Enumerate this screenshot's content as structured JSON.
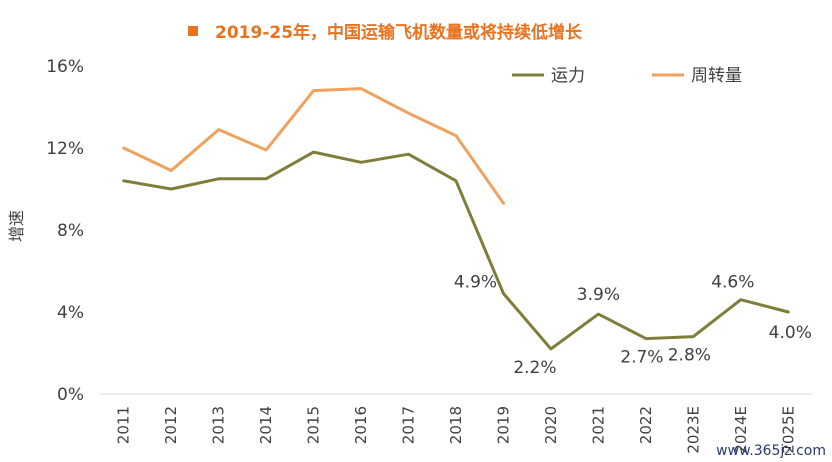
{
  "chart_data": {
    "type": "line",
    "title": "2019-25年，中国运输飞机数量或将持续低增长",
    "ylabel": "增速",
    "xlabel": "",
    "ylim": [
      0,
      16
    ],
    "yticks": [
      "0%",
      "4%",
      "8%",
      "12%",
      "16%"
    ],
    "yticks_values": [
      0,
      4,
      8,
      12,
      16
    ],
    "categories": [
      "2011",
      "2012",
      "2013",
      "2014",
      "2015",
      "2016",
      "2017",
      "2018",
      "2019",
      "2020",
      "2021",
      "2022",
      "2023E",
      "2024E",
      "2025E"
    ],
    "series": [
      {
        "name": "运力",
        "color": "#7E7E3A",
        "values": [
          10.4,
          10.0,
          10.5,
          10.5,
          11.8,
          11.3,
          11.7,
          10.4,
          4.9,
          2.2,
          3.9,
          2.7,
          2.8,
          4.6,
          4.0
        ],
        "data_labels": [
          null,
          null,
          null,
          null,
          null,
          null,
          null,
          null,
          "4.9%",
          "2.2%",
          "3.9%",
          "2.7%",
          "2.8%",
          "4.6%",
          "4.0%"
        ]
      },
      {
        "name": "周转量",
        "color": "#F0A15C",
        "values": [
          12.0,
          10.9,
          12.9,
          11.9,
          14.8,
          14.9,
          13.7,
          12.6,
          9.3,
          null,
          null,
          null,
          null,
          null,
          null
        ]
      }
    ],
    "legend_position": "top-right",
    "grid": false
  },
  "watermark": "www.365jz.com"
}
